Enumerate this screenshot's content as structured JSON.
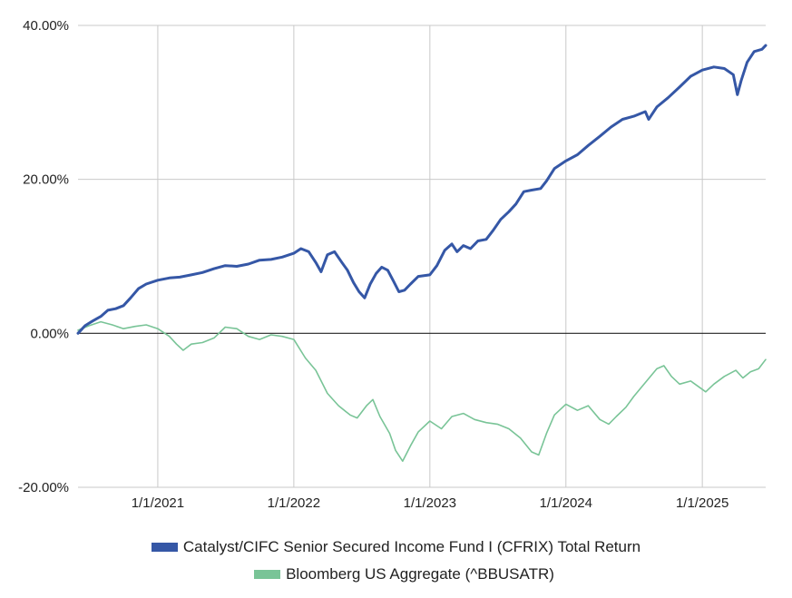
{
  "chart_data": {
    "type": "line",
    "title": "",
    "xlabel": "",
    "ylabel": "",
    "x_range": [
      "2020-06-01",
      "2025-06-20"
    ],
    "ylim": [
      -20,
      40
    ],
    "y_ticks": [
      40,
      20,
      0,
      -20
    ],
    "y_tick_labels": [
      "40.00%",
      "20.00%",
      "0.00%",
      "-20.00%"
    ],
    "x_ticks": [
      "2021-01-01",
      "2022-01-01",
      "2023-01-01",
      "2024-01-01",
      "2025-01-01"
    ],
    "x_tick_labels": [
      "1/1/2021",
      "1/1/2022",
      "1/1/2023",
      "1/1/2024",
      "1/1/2025"
    ],
    "grid": true,
    "zero_line": true,
    "legend_position": "bottom",
    "series": [
      {
        "name": "Catalyst/CIFC Senior Secured Income Fund I (CFRIX) Total Return",
        "color": "#3557a6",
        "points": [
          [
            "2020-06-01",
            0.0
          ],
          [
            "2020-06-20",
            1.0
          ],
          [
            "2020-07-10",
            1.6
          ],
          [
            "2020-08-01",
            2.2
          ],
          [
            "2020-08-20",
            3.0
          ],
          [
            "2020-09-10",
            3.2
          ],
          [
            "2020-10-01",
            3.6
          ],
          [
            "2020-10-20",
            4.6
          ],
          [
            "2020-11-10",
            5.8
          ],
          [
            "2020-12-01",
            6.4
          ],
          [
            "2021-01-01",
            6.9
          ],
          [
            "2021-02-01",
            7.2
          ],
          [
            "2021-03-01",
            7.3
          ],
          [
            "2021-04-01",
            7.6
          ],
          [
            "2021-05-01",
            7.9
          ],
          [
            "2021-06-01",
            8.4
          ],
          [
            "2021-07-01",
            8.8
          ],
          [
            "2021-08-01",
            8.7
          ],
          [
            "2021-09-01",
            9.0
          ],
          [
            "2021-10-01",
            9.5
          ],
          [
            "2021-11-01",
            9.6
          ],
          [
            "2021-12-01",
            9.9
          ],
          [
            "2022-01-01",
            10.4
          ],
          [
            "2022-01-20",
            11.0
          ],
          [
            "2022-02-10",
            10.6
          ],
          [
            "2022-03-01",
            9.2
          ],
          [
            "2022-03-15",
            8.0
          ],
          [
            "2022-04-01",
            10.2
          ],
          [
            "2022-04-20",
            10.6
          ],
          [
            "2022-05-10",
            9.2
          ],
          [
            "2022-05-25",
            8.2
          ],
          [
            "2022-06-10",
            6.6
          ],
          [
            "2022-06-25",
            5.4
          ],
          [
            "2022-07-10",
            4.6
          ],
          [
            "2022-07-25",
            6.4
          ],
          [
            "2022-08-10",
            7.8
          ],
          [
            "2022-08-25",
            8.6
          ],
          [
            "2022-09-10",
            8.2
          ],
          [
            "2022-09-25",
            6.8
          ],
          [
            "2022-10-10",
            5.4
          ],
          [
            "2022-10-25",
            5.6
          ],
          [
            "2022-11-10",
            6.4
          ],
          [
            "2022-12-01",
            7.4
          ],
          [
            "2023-01-01",
            7.6
          ],
          [
            "2023-01-20",
            8.8
          ],
          [
            "2023-02-10",
            10.8
          ],
          [
            "2023-03-01",
            11.6
          ],
          [
            "2023-03-15",
            10.6
          ],
          [
            "2023-04-01",
            11.4
          ],
          [
            "2023-04-20",
            11.0
          ],
          [
            "2023-05-10",
            12.0
          ],
          [
            "2023-06-01",
            12.2
          ],
          [
            "2023-06-20",
            13.4
          ],
          [
            "2023-07-10",
            14.8
          ],
          [
            "2023-08-01",
            15.8
          ],
          [
            "2023-08-20",
            16.8
          ],
          [
            "2023-09-10",
            18.4
          ],
          [
            "2023-10-01",
            18.6
          ],
          [
            "2023-10-25",
            18.8
          ],
          [
            "2023-11-10",
            19.8
          ],
          [
            "2023-12-01",
            21.4
          ],
          [
            "2024-01-01",
            22.4
          ],
          [
            "2024-02-01",
            23.2
          ],
          [
            "2024-03-01",
            24.4
          ],
          [
            "2024-04-01",
            25.6
          ],
          [
            "2024-05-01",
            26.8
          ],
          [
            "2024-06-01",
            27.8
          ],
          [
            "2024-07-01",
            28.2
          ],
          [
            "2024-08-01",
            28.8
          ],
          [
            "2024-08-10",
            27.8
          ],
          [
            "2024-09-01",
            29.4
          ],
          [
            "2024-10-01",
            30.6
          ],
          [
            "2024-11-01",
            32.0
          ],
          [
            "2024-12-01",
            33.4
          ],
          [
            "2025-01-01",
            34.2
          ],
          [
            "2025-02-01",
            34.6
          ],
          [
            "2025-03-01",
            34.4
          ],
          [
            "2025-03-25",
            33.6
          ],
          [
            "2025-04-05",
            31.0
          ],
          [
            "2025-04-15",
            32.8
          ],
          [
            "2025-05-01",
            35.2
          ],
          [
            "2025-05-20",
            36.6
          ],
          [
            "2025-06-10",
            36.9
          ],
          [
            "2025-06-20",
            37.4
          ]
        ]
      },
      {
        "name": "Bloomberg US Aggregate (^BBUSATR)",
        "color": "#79c497",
        "points": [
          [
            "2020-06-01",
            0.4
          ],
          [
            "2020-07-01",
            1.0
          ],
          [
            "2020-08-01",
            1.5
          ],
          [
            "2020-09-01",
            1.1
          ],
          [
            "2020-10-01",
            0.6
          ],
          [
            "2020-11-01",
            0.9
          ],
          [
            "2020-12-01",
            1.1
          ],
          [
            "2021-01-01",
            0.6
          ],
          [
            "2021-02-01",
            -0.4
          ],
          [
            "2021-02-20",
            -1.4
          ],
          [
            "2021-03-10",
            -2.2
          ],
          [
            "2021-04-01",
            -1.4
          ],
          [
            "2021-05-01",
            -1.2
          ],
          [
            "2021-06-01",
            -0.6
          ],
          [
            "2021-07-01",
            0.8
          ],
          [
            "2021-08-01",
            0.6
          ],
          [
            "2021-09-01",
            -0.4
          ],
          [
            "2021-10-01",
            -0.8
          ],
          [
            "2021-11-01",
            -0.2
          ],
          [
            "2021-12-01",
            -0.4
          ],
          [
            "2022-01-01",
            -0.8
          ],
          [
            "2022-02-01",
            -3.2
          ],
          [
            "2022-03-01",
            -4.8
          ],
          [
            "2022-04-01",
            -7.8
          ],
          [
            "2022-05-01",
            -9.4
          ],
          [
            "2022-06-01",
            -10.6
          ],
          [
            "2022-06-20",
            -11.0
          ],
          [
            "2022-07-15",
            -9.4
          ],
          [
            "2022-08-01",
            -8.6
          ],
          [
            "2022-08-20",
            -10.8
          ],
          [
            "2022-09-15",
            -13.0
          ],
          [
            "2022-10-01",
            -15.2
          ],
          [
            "2022-10-20",
            -16.6
          ],
          [
            "2022-11-10",
            -14.6
          ],
          [
            "2022-12-01",
            -12.8
          ],
          [
            "2023-01-01",
            -11.4
          ],
          [
            "2023-02-01",
            -12.4
          ],
          [
            "2023-03-01",
            -10.8
          ],
          [
            "2023-04-01",
            -10.4
          ],
          [
            "2023-05-01",
            -11.2
          ],
          [
            "2023-06-01",
            -11.6
          ],
          [
            "2023-07-01",
            -11.8
          ],
          [
            "2023-08-01",
            -12.4
          ],
          [
            "2023-09-01",
            -13.6
          ],
          [
            "2023-10-01",
            -15.4
          ],
          [
            "2023-10-20",
            -15.8
          ],
          [
            "2023-11-10",
            -13.0
          ],
          [
            "2023-12-01",
            -10.6
          ],
          [
            "2024-01-01",
            -9.2
          ],
          [
            "2024-02-01",
            -10.0
          ],
          [
            "2024-03-01",
            -9.4
          ],
          [
            "2024-04-01",
            -11.2
          ],
          [
            "2024-04-25",
            -11.8
          ],
          [
            "2024-05-15",
            -10.8
          ],
          [
            "2024-06-10",
            -9.6
          ],
          [
            "2024-07-01",
            -8.2
          ],
          [
            "2024-08-01",
            -6.4
          ],
          [
            "2024-09-01",
            -4.6
          ],
          [
            "2024-09-20",
            -4.2
          ],
          [
            "2024-10-10",
            -5.6
          ],
          [
            "2024-11-01",
            -6.6
          ],
          [
            "2024-12-01",
            -6.2
          ],
          [
            "2025-01-10",
            -7.6
          ],
          [
            "2025-02-01",
            -6.6
          ],
          [
            "2025-03-01",
            -5.6
          ],
          [
            "2025-04-01",
            -4.8
          ],
          [
            "2025-04-20",
            -5.8
          ],
          [
            "2025-05-10",
            -5.0
          ],
          [
            "2025-06-01",
            -4.6
          ],
          [
            "2025-06-20",
            -3.4
          ]
        ]
      }
    ]
  }
}
